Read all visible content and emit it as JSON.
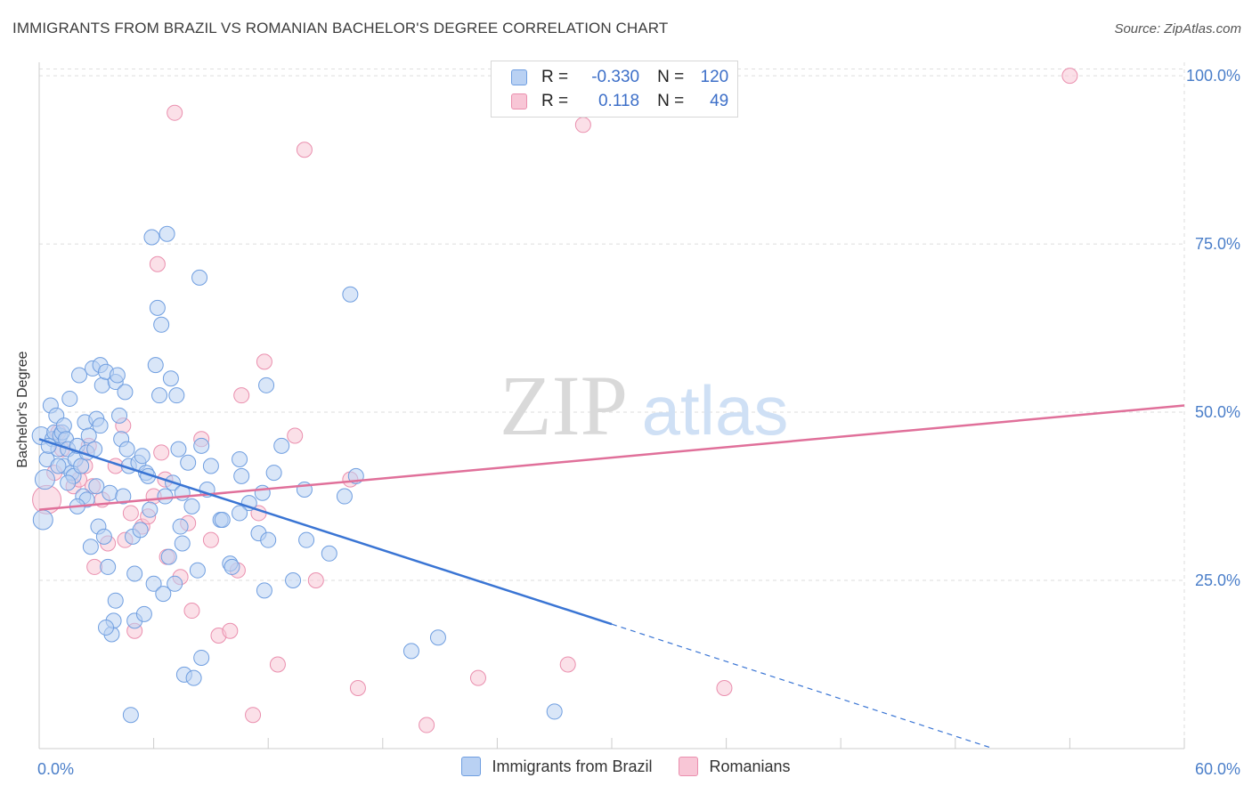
{
  "header": {
    "title": "IMMIGRANTS FROM BRAZIL VS ROMANIAN BACHELOR'S DEGREE CORRELATION CHART",
    "source": "Source: ZipAtlas.com"
  },
  "watermark": {
    "zip": "ZIP",
    "atlas": "atlas"
  },
  "stats": [
    {
      "r_label": "R =",
      "r_value": "-0.330",
      "n_label": "N =",
      "n_value": "120"
    },
    {
      "r_label": "R =",
      "r_value": "0.118",
      "n_label": "N =",
      "n_value": "49"
    }
  ],
  "legend": [
    {
      "label": "Immigrants from Brazil"
    },
    {
      "label": "Romanians"
    }
  ],
  "colors": {
    "blue_fill": "#b9d1f3",
    "blue_stroke": "#6f9ee0",
    "blue_line": "#3a75d4",
    "pink_fill": "#f8c6d6",
    "pink_stroke": "#ea8fae",
    "pink_line": "#e0709a",
    "tick_label": "#4a7ec9",
    "grid": "#dedede"
  },
  "chart_data": {
    "type": "scatter",
    "title": "IMMIGRANTS FROM BRAZIL VS ROMANIAN BACHELOR'S DEGREE CORRELATION CHART",
    "xlabel": "",
    "ylabel": "Bachelor's Degree",
    "xlim": [
      0,
      60
    ],
    "ylim": [
      0,
      102
    ],
    "x_tick_labels": [
      "0.0%",
      "60.0%"
    ],
    "y_ticks": [
      25,
      50,
      75,
      100
    ],
    "y_tick_labels": [
      "25.0%",
      "50.0%",
      "75.0%",
      "100.0%"
    ],
    "grid": true,
    "series": [
      {
        "name": "Immigrants from Brazil",
        "color": "#6f9ee0",
        "points": [
          [
            0.2,
            34
          ],
          [
            0.1,
            46.5
          ],
          [
            0.3,
            40
          ],
          [
            0.4,
            43
          ],
          [
            0.6,
            51
          ],
          [
            0.7,
            46
          ],
          [
            0.8,
            47
          ],
          [
            0.9,
            49.5
          ],
          [
            1.0,
            44.5
          ],
          [
            1.1,
            46.5
          ],
          [
            1.2,
            47
          ],
          [
            1.3,
            48
          ],
          [
            1.3,
            42
          ],
          [
            1.4,
            46
          ],
          [
            1.5,
            44.5
          ],
          [
            1.6,
            52
          ],
          [
            1.7,
            41
          ],
          [
            1.8,
            40.5
          ],
          [
            1.9,
            43
          ],
          [
            2.0,
            45
          ],
          [
            2.1,
            55.5
          ],
          [
            2.2,
            42
          ],
          [
            2.3,
            37.5
          ],
          [
            2.4,
            48.5
          ],
          [
            2.5,
            44
          ],
          [
            2.6,
            46.5
          ],
          [
            2.7,
            30
          ],
          [
            2.8,
            56.5
          ],
          [
            2.9,
            44.5
          ],
          [
            3.0,
            49
          ],
          [
            3.1,
            33
          ],
          [
            3.2,
            57
          ],
          [
            3.2,
            48
          ],
          [
            3.3,
            54
          ],
          [
            3.4,
            31.5
          ],
          [
            3.5,
            56
          ],
          [
            3.6,
            27
          ],
          [
            3.7,
            38
          ],
          [
            3.8,
            17
          ],
          [
            3.9,
            19
          ],
          [
            4.0,
            54.5
          ],
          [
            4.1,
            55.5
          ],
          [
            4.2,
            49.5
          ],
          [
            4.3,
            46
          ],
          [
            4.4,
            37.5
          ],
          [
            4.5,
            53
          ],
          [
            4.6,
            44.5
          ],
          [
            4.7,
            42
          ],
          [
            4.8,
            5
          ],
          [
            4.9,
            31.5
          ],
          [
            5.0,
            19
          ],
          [
            5.2,
            42.5
          ],
          [
            5.3,
            32.5
          ],
          [
            5.4,
            43.5
          ],
          [
            5.5,
            20
          ],
          [
            5.6,
            41
          ],
          [
            5.7,
            40.5
          ],
          [
            5.8,
            35.5
          ],
          [
            5.9,
            76
          ],
          [
            6.0,
            24.5
          ],
          [
            6.1,
            57
          ],
          [
            6.2,
            65.5
          ],
          [
            6.3,
            52.5
          ],
          [
            6.4,
            63
          ],
          [
            6.5,
            23
          ],
          [
            6.6,
            37.5
          ],
          [
            6.7,
            76.5
          ],
          [
            6.9,
            55
          ],
          [
            7.0,
            39.5
          ],
          [
            7.1,
            24.5
          ],
          [
            7.2,
            52.5
          ],
          [
            7.3,
            44.5
          ],
          [
            7.4,
            33
          ],
          [
            7.5,
            30.5
          ],
          [
            7.6,
            11
          ],
          [
            7.8,
            42.5
          ],
          [
            8.0,
            36
          ],
          [
            8.1,
            10.5
          ],
          [
            8.3,
            26.5
          ],
          [
            8.4,
            70
          ],
          [
            8.5,
            13.5
          ],
          [
            8.8,
            38.5
          ],
          [
            9.5,
            34
          ],
          [
            9.6,
            34
          ],
          [
            10.0,
            27.5
          ],
          [
            10.1,
            27
          ],
          [
            10.5,
            43
          ],
          [
            10.6,
            40.5
          ],
          [
            11.0,
            36.5
          ],
          [
            11.5,
            32
          ],
          [
            11.7,
            38
          ],
          [
            11.8,
            23.5
          ],
          [
            11.9,
            54
          ],
          [
            12.3,
            41
          ],
          [
            12.7,
            45
          ],
          [
            13.3,
            25
          ],
          [
            13.9,
            38.5
          ],
          [
            15.2,
            29
          ],
          [
            16.0,
            37.5
          ],
          [
            16.3,
            67.5
          ],
          [
            16.6,
            40.5
          ],
          [
            19.5,
            14.5
          ],
          [
            20.9,
            16.5
          ],
          [
            27.0,
            5.5
          ],
          [
            1.5,
            39.5
          ],
          [
            2.5,
            37
          ],
          [
            4.0,
            22
          ],
          [
            6.8,
            28.5
          ],
          [
            9.0,
            42
          ],
          [
            14.0,
            31
          ],
          [
            3.5,
            18
          ],
          [
            5.0,
            26
          ],
          [
            7.5,
            38
          ],
          [
            10.5,
            35
          ],
          [
            12.0,
            31
          ],
          [
            2.0,
            36
          ],
          [
            1.0,
            42
          ],
          [
            0.5,
            45
          ],
          [
            3.0,
            39
          ],
          [
            8.5,
            45
          ]
        ]
      },
      {
        "name": "Romanians",
        "color": "#ea8fae",
        "points": [
          [
            0.4,
            37
          ],
          [
            1.2,
            44.5
          ],
          [
            1.8,
            39
          ],
          [
            2.1,
            40
          ],
          [
            2.4,
            42
          ],
          [
            2.6,
            45
          ],
          [
            2.8,
            39
          ],
          [
            3.3,
            37
          ],
          [
            3.6,
            30.5
          ],
          [
            4.0,
            42
          ],
          [
            4.4,
            48
          ],
          [
            4.8,
            35
          ],
          [
            5.0,
            17.5
          ],
          [
            5.4,
            33
          ],
          [
            5.7,
            34.5
          ],
          [
            6.0,
            37.5
          ],
          [
            6.2,
            72
          ],
          [
            6.4,
            44
          ],
          [
            6.7,
            28.5
          ],
          [
            7.1,
            94.5
          ],
          [
            7.4,
            25.5
          ],
          [
            7.8,
            33.5
          ],
          [
            8.0,
            20.5
          ],
          [
            8.5,
            46
          ],
          [
            9.4,
            16.8
          ],
          [
            10.0,
            17.5
          ],
          [
            10.4,
            26.5
          ],
          [
            10.6,
            52.5
          ],
          [
            11.2,
            5
          ],
          [
            11.5,
            35
          ],
          [
            11.8,
            57.5
          ],
          [
            12.5,
            12.5
          ],
          [
            13.4,
            46.5
          ],
          [
            13.9,
            89
          ],
          [
            14.5,
            25
          ],
          [
            16.3,
            40
          ],
          [
            16.7,
            9
          ],
          [
            20.3,
            3.5
          ],
          [
            23.0,
            10.5
          ],
          [
            27.7,
            12.5
          ],
          [
            28.5,
            92.7
          ],
          [
            35.9,
            9
          ],
          [
            54.0,
            100
          ],
          [
            1.0,
            47
          ],
          [
            2.9,
            27
          ],
          [
            4.5,
            31
          ],
          [
            6.6,
            40
          ],
          [
            9.0,
            31
          ],
          [
            0.8,
            41
          ]
        ]
      }
    ],
    "trendlines": [
      {
        "series": "Immigrants from Brazil",
        "from": [
          0,
          46
        ],
        "to": [
          30,
          18.5
        ],
        "dashed_to": [
          50,
          0
        ]
      },
      {
        "series": "Romanians",
        "from": [
          0,
          35.5
        ],
        "to": [
          60,
          51
        ]
      }
    ]
  }
}
